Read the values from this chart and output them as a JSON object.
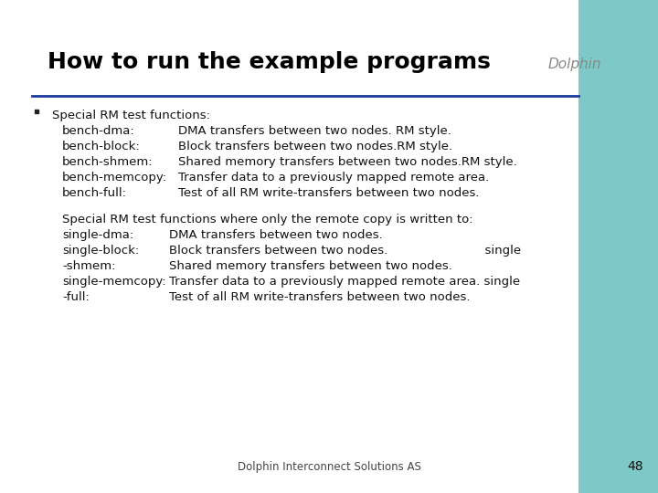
{
  "title": "How to run the example programs",
  "title_fontsize": 18,
  "title_color": "#000000",
  "bg_color": "#ffffff",
  "right_panel_color": "#7ec8c8",
  "line_color": "#1a3a9e",
  "footer_text": "Dolphin Interconnect Solutions AS",
  "page_number": "48",
  "dolphin_text": "Dolphin",
  "body_fontsize": 9.5,
  "body_font": "DejaVu Sans",
  "bullet_first_line": "Special RM test functions:",
  "bench_lines": [
    [
      "bench-dma:",
      "DMA transfers between two nodes. RM style."
    ],
    [
      "bench-block:",
      "Block transfers between two nodes.RM style."
    ],
    [
      "bench-shmem:",
      "Shared memory transfers between two nodes.RM style."
    ],
    [
      "bench-memcopy:",
      "Transfer data to a previously mapped remote area."
    ],
    [
      "bench-full:",
      "Test of all RM write-transfers between two nodes."
    ]
  ],
  "second_block_line0": "Special RM test functions where only the remote copy is written to:",
  "single_lines": [
    [
      "single-dma:",
      "DMA transfers between two nodes."
    ],
    [
      "single-block:",
      "Block transfers between two nodes.                         single"
    ],
    [
      "-shmem:",
      "Shared memory transfers between two nodes."
    ],
    [
      "single-memcopy:",
      "Transfer data to a previously mapped remote area. single"
    ],
    [
      "-full:",
      "Test of all RM write-transfers between two nodes."
    ]
  ]
}
